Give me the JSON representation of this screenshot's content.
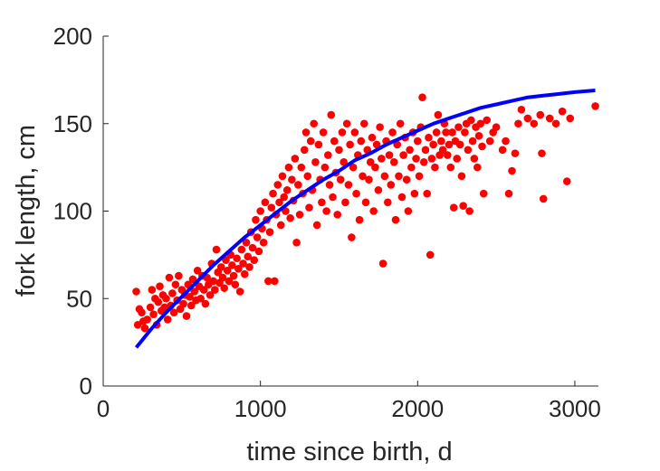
{
  "chart_data": {
    "type": "scatter",
    "xlabel": "time since birth, d",
    "ylabel": "fork length, cm",
    "xlim": [
      0,
      3150
    ],
    "ylim": [
      0,
      200
    ],
    "xticks": [
      0,
      1000,
      2000,
      3000
    ],
    "yticks": [
      0,
      50,
      100,
      150,
      200
    ],
    "grid": false,
    "legend": "none",
    "series": [
      {
        "kind": "points",
        "color": "#ff0000",
        "points": [
          [
            210,
            54
          ],
          [
            220,
            35
          ],
          [
            230,
            44
          ],
          [
            245,
            42
          ],
          [
            255,
            37
          ],
          [
            265,
            33
          ],
          [
            280,
            38
          ],
          [
            300,
            45
          ],
          [
            310,
            55
          ],
          [
            320,
            41
          ],
          [
            330,
            50
          ],
          [
            340,
            35
          ],
          [
            350,
            48
          ],
          [
            360,
            57
          ],
          [
            370,
            43
          ],
          [
            380,
            52
          ],
          [
            390,
            45
          ],
          [
            400,
            50
          ],
          [
            410,
            38
          ],
          [
            420,
            62
          ],
          [
            430,
            46
          ],
          [
            440,
            53
          ],
          [
            450,
            42
          ],
          [
            460,
            58
          ],
          [
            470,
            49
          ],
          [
            480,
            63
          ],
          [
            490,
            44
          ],
          [
            500,
            55
          ],
          [
            510,
            47
          ],
          [
            520,
            52
          ],
          [
            530,
            40
          ],
          [
            540,
            58
          ],
          [
            550,
            51
          ],
          [
            560,
            46
          ],
          [
            570,
            61
          ],
          [
            580,
            54
          ],
          [
            590,
            49
          ],
          [
            600,
            66
          ],
          [
            610,
            57
          ],
          [
            620,
            50
          ],
          [
            630,
            63
          ],
          [
            640,
            55
          ],
          [
            650,
            47
          ],
          [
            660,
            62
          ],
          [
            670,
            58
          ],
          [
            680,
            52
          ],
          [
            690,
            70
          ],
          [
            700,
            60
          ],
          [
            710,
            55
          ],
          [
            720,
            78
          ],
          [
            730,
            65
          ],
          [
            740,
            59
          ],
          [
            750,
            68
          ],
          [
            760,
            62
          ],
          [
            770,
            56
          ],
          [
            780,
            72
          ],
          [
            790,
            66
          ],
          [
            800,
            60
          ],
          [
            810,
            75
          ],
          [
            820,
            69
          ],
          [
            830,
            63
          ],
          [
            840,
            58
          ],
          [
            850,
            73
          ],
          [
            860,
            67
          ],
          [
            870,
            54
          ],
          [
            880,
            78
          ],
          [
            890,
            70
          ],
          [
            900,
            64
          ],
          [
            910,
            82
          ],
          [
            920,
            74
          ],
          [
            930,
            68
          ],
          [
            940,
            88
          ],
          [
            950,
            79
          ],
          [
            960,
            72
          ],
          [
            970,
            95
          ],
          [
            980,
            85
          ],
          [
            990,
            77
          ],
          [
            1000,
            100
          ],
          [
            1010,
            90
          ],
          [
            1020,
            82
          ],
          [
            1030,
            105
          ],
          [
            1040,
            95
          ],
          [
            1050,
            60
          ],
          [
            1060,
            88
          ],
          [
            1070,
            102
          ],
          [
            1080,
            110
          ],
          [
            1090,
            60
          ],
          [
            1100,
            98
          ],
          [
            1110,
            115
          ],
          [
            1120,
            105
          ],
          [
            1130,
            92
          ],
          [
            1140,
            120
          ],
          [
            1150,
            108
          ],
          [
            1160,
            100
          ],
          [
            1170,
            112
          ],
          [
            1180,
            125
          ],
          [
            1190,
            96
          ],
          [
            1200,
            118
          ],
          [
            1210,
            106
          ],
          [
            1220,
            130
          ],
          [
            1230,
            82
          ],
          [
            1240,
            115
          ],
          [
            1250,
            98
          ],
          [
            1260,
            125
          ],
          [
            1270,
            110
          ],
          [
            1280,
            135
          ],
          [
            1290,
            145
          ],
          [
            1300,
            120
          ],
          [
            1310,
            102
          ],
          [
            1320,
            140
          ],
          [
            1330,
            112
          ],
          [
            1340,
            150
          ],
          [
            1350,
            128
          ],
          [
            1360,
            92
          ],
          [
            1370,
            138
          ],
          [
            1380,
            118
          ],
          [
            1390,
            105
          ],
          [
            1400,
            145
          ],
          [
            1410,
            125
          ],
          [
            1420,
            100
          ],
          [
            1430,
            132
          ],
          [
            1440,
            115
          ],
          [
            1450,
            155
          ],
          [
            1460,
            108
          ],
          [
            1470,
            140
          ],
          [
            1480,
            122
          ],
          [
            1490,
            98
          ],
          [
            1500,
            135
          ],
          [
            1510,
            118
          ],
          [
            1520,
            145
          ],
          [
            1530,
            128
          ],
          [
            1540,
            105
          ],
          [
            1550,
            150
          ],
          [
            1560,
            115
          ],
          [
            1570,
            138
          ],
          [
            1580,
            85
          ],
          [
            1590,
            125
          ],
          [
            1600,
            145
          ],
          [
            1610,
            110
          ],
          [
            1620,
            132
          ],
          [
            1630,
            95
          ],
          [
            1640,
            140
          ],
          [
            1650,
            120
          ],
          [
            1660,
            150
          ],
          [
            1670,
            105
          ],
          [
            1680,
            135
          ],
          [
            1690,
            118
          ],
          [
            1700,
            128
          ],
          [
            1710,
            142
          ],
          [
            1720,
            100
          ],
          [
            1730,
            125
          ],
          [
            1740,
            138
          ],
          [
            1750,
            112
          ],
          [
            1760,
            148
          ],
          [
            1770,
            130
          ],
          [
            1780,
            70
          ],
          [
            1790,
            120
          ],
          [
            1800,
            140
          ],
          [
            1810,
            105
          ],
          [
            1820,
            132
          ],
          [
            1830,
            115
          ],
          [
            1840,
            145
          ],
          [
            1850,
            128
          ],
          [
            1860,
            95
          ],
          [
            1870,
            138
          ],
          [
            1880,
            120
          ],
          [
            1890,
            150
          ],
          [
            1900,
            108
          ],
          [
            1910,
            132
          ],
          [
            1920,
            142
          ],
          [
            1930,
            118
          ],
          [
            1940,
            100
          ],
          [
            1950,
            135
          ],
          [
            1960,
            125
          ],
          [
            1970,
            145
          ],
          [
            1980,
            110
          ],
          [
            1990,
            130
          ],
          [
            2000,
            140
          ],
          [
            2010,
            120
          ],
          [
            2020,
            148
          ],
          [
            2030,
            165
          ],
          [
            2040,
            128
          ],
          [
            2050,
            135
          ],
          [
            2060,
            110
          ],
          [
            2070,
            142
          ],
          [
            2080,
            75
          ],
          [
            2090,
            130
          ],
          [
            2100,
            138
          ],
          [
            2110,
            125
          ],
          [
            2120,
            145
          ],
          [
            2130,
            155
          ],
          [
            2140,
            132
          ],
          [
            2150,
            140
          ],
          [
            2160,
            135
          ],
          [
            2170,
            150
          ],
          [
            2180,
            145
          ],
          [
            2190,
            132
          ],
          [
            2200,
            138
          ],
          [
            2210,
            125
          ],
          [
            2220,
            145
          ],
          [
            2230,
            102
          ],
          [
            2240,
            140
          ],
          [
            2250,
            130
          ],
          [
            2260,
            148
          ],
          [
            2270,
            138
          ],
          [
            2280,
            120
          ],
          [
            2290,
            103
          ],
          [
            2300,
            145
          ],
          [
            2310,
            150
          ],
          [
            2320,
            135
          ],
          [
            2330,
            100
          ],
          [
            2340,
            152
          ],
          [
            2350,
            140
          ],
          [
            2360,
            130
          ],
          [
            2370,
            148
          ],
          [
            2380,
            125
          ],
          [
            2390,
            143
          ],
          [
            2400,
            150
          ],
          [
            2410,
            137
          ],
          [
            2420,
            110
          ],
          [
            2440,
            152
          ],
          [
            2460,
            140
          ],
          [
            2480,
            145
          ],
          [
            2500,
            148
          ],
          [
            2540,
            135
          ],
          [
            2560,
            140
          ],
          [
            2580,
            110
          ],
          [
            2600,
            123
          ],
          [
            2620,
            133
          ],
          [
            2640,
            150
          ],
          [
            2660,
            158
          ],
          [
            2700,
            153
          ],
          [
            2740,
            150
          ],
          [
            2780,
            155
          ],
          [
            2790,
            133
          ],
          [
            2800,
            107
          ],
          [
            2840,
            153
          ],
          [
            2880,
            150
          ],
          [
            2920,
            157
          ],
          [
            2950,
            117
          ],
          [
            2970,
            153
          ],
          [
            3130,
            160
          ]
        ]
      },
      {
        "kind": "line",
        "color": "#0000ff",
        "points": [
          [
            210,
            22
          ],
          [
            300,
            32
          ],
          [
            400,
            42
          ],
          [
            500,
            51
          ],
          [
            600,
            60
          ],
          [
            700,
            69
          ],
          [
            800,
            77
          ],
          [
            900,
            85
          ],
          [
            1000,
            92
          ],
          [
            1100,
            99
          ],
          [
            1200,
            106
          ],
          [
            1300,
            112
          ],
          [
            1400,
            118
          ],
          [
            1500,
            123
          ],
          [
            1600,
            129
          ],
          [
            1700,
            133
          ],
          [
            1800,
            138
          ],
          [
            1900,
            142
          ],
          [
            2000,
            146
          ],
          [
            2100,
            150
          ],
          [
            2200,
            153
          ],
          [
            2300,
            156
          ],
          [
            2400,
            159
          ],
          [
            2500,
            161
          ],
          [
            2600,
            163
          ],
          [
            2700,
            165
          ],
          [
            2800,
            166
          ],
          [
            2900,
            167
          ],
          [
            3000,
            168
          ],
          [
            3130,
            169
          ]
        ]
      }
    ]
  }
}
